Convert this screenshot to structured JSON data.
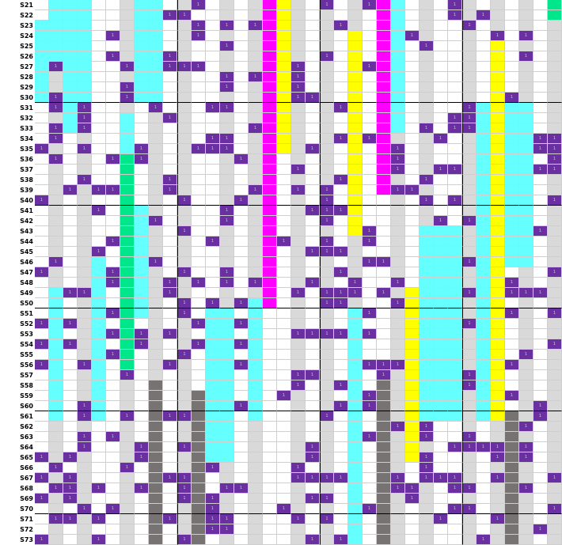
{
  "rows": [
    "S21",
    "S22",
    "S23",
    "S24",
    "S25",
    "S26",
    "S27",
    "S28",
    "S29",
    "S30",
    "S31",
    "S32",
    "S33",
    "S34",
    "S35",
    "S36",
    "S37",
    "S38",
    "S39",
    "S40",
    "S41",
    "S42",
    "S43",
    "S44",
    "S45",
    "S46",
    "S47",
    "S48",
    "S49",
    "S50",
    "S51",
    "S52",
    "S53",
    "S54",
    "S55",
    "S56",
    "S57",
    "S58",
    "S59",
    "S60",
    "S61",
    "S62",
    "S63",
    "S64",
    "S65",
    "S66",
    "S67",
    "S68",
    "S69",
    "S70",
    "S71",
    "S72",
    "S73"
  ],
  "marker": "1",
  "colors": {
    "cyan": "#66ffff",
    "purple": "#6a2fa0",
    "gray": "#d9d9d9",
    "darkgray": "#777373",
    "magenta": "#ff00ff",
    "yellow": "#ffff00",
    "green": "#00e68a",
    "white": "#ffffff"
  }
}
